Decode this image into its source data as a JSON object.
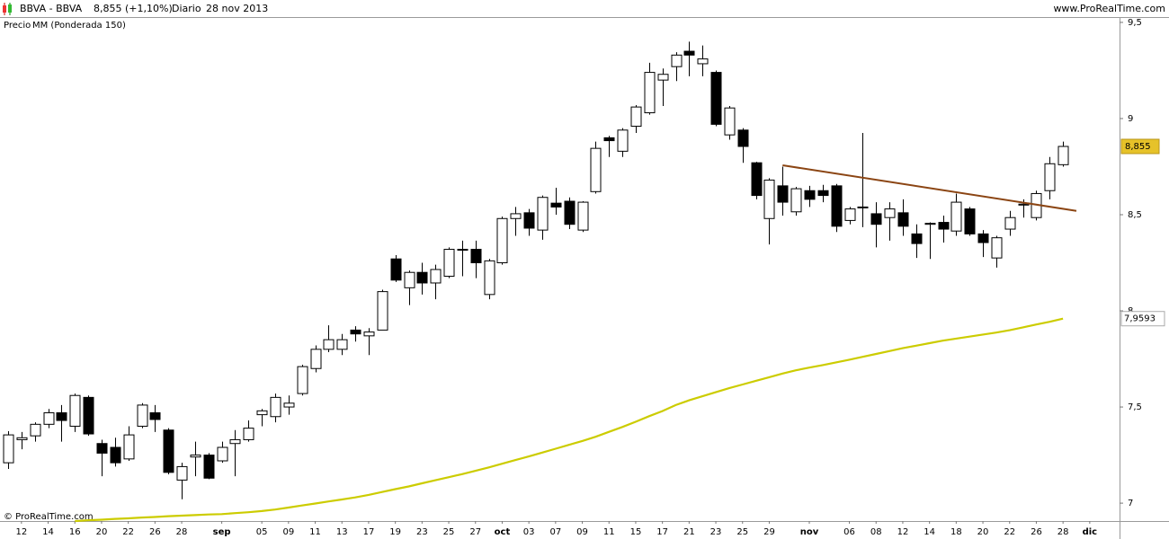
{
  "chart_data": {
    "type": "candlestick",
    "title": "BBVA - BBVA",
    "subtitle": "8,855 (+1,10%)",
    "period": "Diario",
    "date": "28 nov 2013",
    "source": "www.ProRealTime.com",
    "footer": "© ProRealTime.com",
    "categories": [
      null,
      "12",
      null,
      "14",
      null,
      "16",
      null,
      "20",
      null,
      "22",
      null,
      "26",
      null,
      "28",
      null,
      null,
      "sep",
      null,
      null,
      "05",
      null,
      "09",
      null,
      "11",
      null,
      "13",
      null,
      "17",
      null,
      "19",
      null,
      "23",
      null,
      "25",
      null,
      "27",
      null,
      "oct",
      null,
      "03",
      null,
      "07",
      null,
      "09",
      null,
      "11",
      null,
      "15",
      null,
      "17",
      null,
      "21",
      null,
      "23",
      null,
      "25",
      null,
      "29",
      null,
      null,
      "nov",
      null,
      null,
      "06",
      null,
      "08",
      null,
      "12",
      null,
      "14",
      null,
      "18",
      null,
      "20",
      null,
      "22",
      null,
      "26",
      null,
      "28",
      null,
      "dic"
    ],
    "ohlc": {
      "name": "Precio",
      "up_color": "#ffffff",
      "down_color": "#000000",
      "last_label": "8,855",
      "last_label_color": "#e6c229",
      "open": [
        7.21,
        7.33,
        7.35,
        7.41,
        7.47,
        7.4,
        7.55,
        7.31,
        7.29,
        7.23,
        7.4,
        7.47,
        7.38,
        7.12,
        7.24,
        7.25,
        7.22,
        7.31,
        7.33,
        7.46,
        7.45,
        7.5,
        7.57,
        7.7,
        7.8,
        7.8,
        7.9,
        7.87,
        7.9,
        8.27,
        8.12,
        8.2,
        8.145,
        8.18,
        8.32,
        8.32,
        8.085,
        8.25,
        8.48,
        8.51,
        8.42,
        8.56,
        8.57,
        8.42,
        8.62,
        8.9,
        8.83,
        8.96,
        9.03,
        9.2,
        9.27,
        9.35,
        9.285,
        9.24,
        8.915,
        8.94,
        8.77,
        8.48,
        8.65,
        8.515,
        8.625,
        8.625,
        8.65,
        8.47,
        8.54,
        8.505,
        8.485,
        8.51,
        8.4,
        8.45,
        8.46,
        8.415,
        8.53,
        8.4,
        8.275,
        8.425,
        8.55,
        8.485,
        8.625,
        8.76,
        null,
        null
      ],
      "high": [
        7.374,
        7.37,
        7.42,
        7.49,
        7.51,
        7.57,
        7.56,
        7.33,
        7.34,
        7.4,
        7.52,
        7.51,
        7.39,
        7.21,
        7.32,
        7.26,
        7.32,
        7.38,
        7.43,
        7.49,
        7.57,
        7.56,
        7.72,
        7.82,
        7.925,
        7.88,
        7.92,
        7.91,
        8.11,
        8.29,
        8.21,
        8.25,
        8.24,
        8.33,
        8.365,
        8.365,
        8.27,
        8.49,
        8.54,
        8.53,
        8.6,
        8.64,
        8.59,
        8.57,
        8.88,
        8.91,
        8.95,
        9.07,
        9.29,
        9.26,
        9.345,
        9.4,
        9.38,
        9.25,
        9.065,
        8.95,
        8.775,
        8.69,
        8.75,
        8.645,
        8.65,
        8.655,
        8.66,
        8.54,
        8.925,
        8.565,
        8.565,
        8.58,
        8.45,
        8.46,
        8.495,
        8.61,
        8.54,
        8.42,
        8.39,
        8.52,
        8.58,
        8.625,
        8.8,
        8.88,
        null,
        null
      ],
      "low": [
        7.178,
        7.28,
        7.32,
        7.39,
        7.32,
        7.37,
        7.35,
        7.14,
        7.19,
        7.22,
        7.39,
        7.37,
        7.15,
        7.02,
        7.14,
        7.125,
        7.21,
        7.14,
        7.32,
        7.4,
        7.42,
        7.46,
        7.56,
        7.68,
        7.785,
        7.77,
        7.84,
        7.77,
        7.9,
        8.15,
        8.03,
        8.085,
        8.06,
        8.17,
        8.18,
        8.17,
        8.06,
        8.24,
        8.39,
        8.39,
        8.37,
        8.5,
        8.425,
        8.41,
        8.61,
        8.8,
        8.8,
        8.925,
        9.02,
        9.065,
        9.195,
        9.22,
        9.22,
        8.96,
        8.89,
        8.77,
        8.58,
        8.345,
        8.495,
        8.495,
        8.54,
        8.565,
        8.41,
        8.45,
        8.435,
        8.33,
        8.365,
        8.39,
        8.275,
        8.27,
        8.355,
        8.39,
        8.39,
        8.28,
        8.225,
        8.39,
        8.485,
        8.47,
        8.58,
        8.75,
        null,
        null
      ],
      "close": [
        7.355,
        7.34,
        7.41,
        7.47,
        7.43,
        7.56,
        7.36,
        7.26,
        7.21,
        7.355,
        7.51,
        7.435,
        7.16,
        7.19,
        7.25,
        7.13,
        7.29,
        7.33,
        7.39,
        7.48,
        7.55,
        7.52,
        7.71,
        7.8,
        7.85,
        7.85,
        7.88,
        7.89,
        8.1,
        8.16,
        8.2,
        8.145,
        8.215,
        8.32,
        8.32,
        8.25,
        8.26,
        8.48,
        8.505,
        8.43,
        8.59,
        8.54,
        8.45,
        8.565,
        8.845,
        8.885,
        8.94,
        9.06,
        9.24,
        9.23,
        9.33,
        9.33,
        9.31,
        8.97,
        9.055,
        8.855,
        8.6,
        8.68,
        8.565,
        8.635,
        8.58,
        8.6,
        8.44,
        8.53,
        8.54,
        8.45,
        8.53,
        8.44,
        8.35,
        8.455,
        8.425,
        8.565,
        8.4,
        8.355,
        8.38,
        8.485,
        8.555,
        8.61,
        8.765,
        8.855,
        null,
        null
      ]
    },
    "series": [
      {
        "name": "MM (Ponderada 150)",
        "color": "#cccc00",
        "last_label": "7,9593",
        "values": [
          null,
          null,
          null,
          null,
          null,
          6.907,
          6.911,
          6.914,
          6.918,
          6.921,
          6.925,
          6.928,
          6.932,
          6.935,
          6.938,
          6.941,
          6.943,
          6.948,
          6.953,
          6.959,
          6.967,
          6.977,
          6.988,
          6.998,
          7.009,
          7.019,
          7.03,
          7.043,
          7.058,
          7.073,
          7.087,
          7.103,
          7.119,
          7.135,
          7.151,
          7.168,
          7.186,
          7.205,
          7.224,
          7.243,
          7.263,
          7.283,
          7.303,
          7.323,
          7.345,
          7.371,
          7.396,
          7.423,
          7.452,
          7.479,
          7.51,
          7.535,
          7.556,
          7.577,
          7.598,
          7.617,
          7.636,
          7.655,
          7.674,
          7.691,
          7.705,
          7.718,
          7.732,
          7.746,
          7.761,
          7.776,
          7.791,
          7.806,
          7.819,
          7.832,
          7.845,
          7.856,
          7.866,
          7.877,
          7.887,
          7.899,
          7.914,
          7.929,
          7.943,
          7.9593,
          null,
          null
        ]
      }
    ],
    "trendline": {
      "color": "#8b4513",
      "values": [
        null,
        null,
        null,
        null,
        null,
        null,
        null,
        null,
        null,
        null,
        null,
        null,
        null,
        null,
        null,
        null,
        null,
        null,
        null,
        null,
        null,
        null,
        null,
        null,
        null,
        null,
        null,
        null,
        null,
        null,
        null,
        null,
        null,
        null,
        null,
        null,
        null,
        null,
        null,
        null,
        null,
        null,
        null,
        null,
        null,
        null,
        null,
        null,
        null,
        null,
        null,
        null,
        null,
        null,
        null,
        null,
        null,
        null,
        8.757,
        null,
        null,
        null,
        null,
        null,
        null,
        null,
        null,
        null,
        null,
        null,
        null,
        null,
        null,
        null,
        null,
        null,
        null,
        null,
        null,
        null,
        8.52,
        null
      ]
    },
    "ylim": [
      6.907,
      9.523
    ],
    "yticks": [
      7,
      {
        "value": 7.5,
        "label": "7,5"
      },
      8,
      {
        "value": 8.5,
        "label": "8,5"
      },
      9,
      {
        "value": 9.5,
        "label": "9,5"
      }
    ],
    "grid": false
  }
}
